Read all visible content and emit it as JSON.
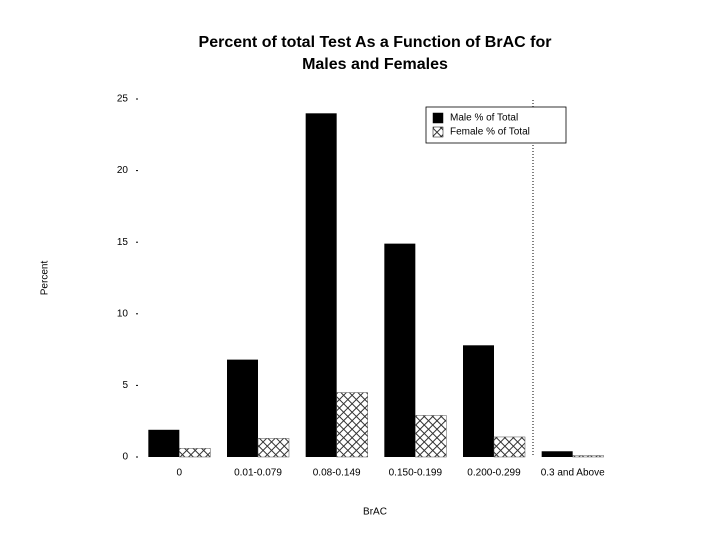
{
  "chart_data": {
    "type": "bar",
    "title": [
      "Percent of total Test As a Function of BrAC for",
      "Males and Females"
    ],
    "x_label": "BrAC",
    "y_label": "Percent",
    "categories": [
      "0",
      "0.01-0.079",
      "0.08-0.149",
      "0.150-0.199",
      "0.200-0.299",
      "0.3 and Above"
    ],
    "series": [
      {
        "name": "Male % of Total",
        "color": "#000000",
        "values": [
          1.9,
          6.8,
          24.0,
          14.9,
          7.8,
          0.4
        ]
      },
      {
        "name": "Female % of Total",
        "color": "#555555",
        "pattern": "crosshatch",
        "values": [
          0.6,
          1.3,
          4.5,
          2.9,
          1.4,
          0.1
        ]
      }
    ],
    "ylim": [
      0,
      25
    ],
    "yticks": [
      0,
      5,
      10,
      15,
      20,
      25
    ],
    "legend": "upper right"
  }
}
